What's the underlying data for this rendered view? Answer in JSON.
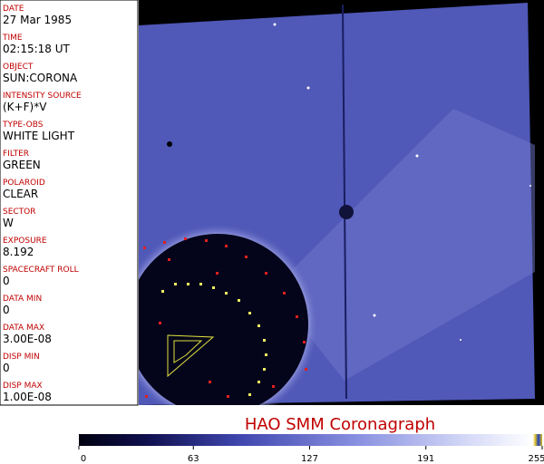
{
  "panel": {
    "fields": [
      {
        "label": "DATE",
        "value": "27 Mar 1985"
      },
      {
        "label": "TIME",
        "value": "02:15:18 UT"
      },
      {
        "label": "OBJECT",
        "value": "SUN:CORONA"
      },
      {
        "label": "INTENSITY SOURCE",
        "value": "(K+F)*V"
      },
      {
        "label": "TYPE-OBS",
        "value": "WHITE LIGHT"
      },
      {
        "label": "FILTER",
        "value": "GREEN"
      },
      {
        "label": "POLAROID",
        "value": "CLEAR"
      },
      {
        "label": "SECTOR",
        "value": "W"
      },
      {
        "label": "EXPOSURE",
        "value": "8.192"
      },
      {
        "label": "SPACECRAFT ROLL",
        "value": "0"
      },
      {
        "label": "DATA MIN",
        "value": "0"
      },
      {
        "label": "DATA MAX",
        "value": "3.00E-08"
      },
      {
        "label": "DISP MIN",
        "value": "0"
      },
      {
        "label": "DISP MAX",
        "value": "1.00E-08"
      }
    ]
  },
  "image": {
    "title": "HAO  SMM  Coronagraph"
  },
  "colorbar": {
    "range": [
      0,
      255
    ],
    "ticks": [
      0,
      63,
      127,
      191,
      255
    ]
  }
}
